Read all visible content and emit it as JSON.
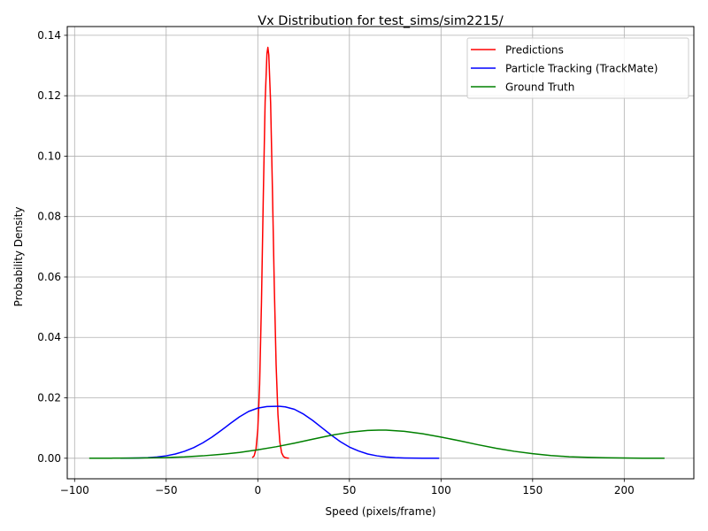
{
  "chart_data": {
    "type": "line",
    "title": "Vx Distribution for test_sims/sim2215/",
    "xlabel": "Speed (pixels/frame)",
    "ylabel": "Probability Density",
    "xlim": [
      -104,
      238
    ],
    "ylim": [
      -0.0068,
      0.1429
    ],
    "xticks": [
      -100,
      -50,
      0,
      50,
      100,
      150,
      200
    ],
    "xtick_labels": [
      "−100",
      "−50",
      "0",
      "50",
      "100",
      "150",
      "200"
    ],
    "yticks": [
      0.0,
      0.02,
      0.04,
      0.06,
      0.08,
      0.1,
      0.12,
      0.14
    ],
    "ytick_labels": [
      "0.00",
      "0.02",
      "0.04",
      "0.06",
      "0.08",
      "0.10",
      "0.12",
      "0.14"
    ],
    "grid": true,
    "legend_position": "top-right",
    "series": [
      {
        "name": "Predictions",
        "color": "#ff0000",
        "x": [
          -3.0,
          -2.0,
          -1.0,
          0.0,
          1.0,
          2.0,
          3.0,
          4.0,
          5.0,
          5.5,
          6.0,
          7.0,
          8.0,
          9.0,
          10.0,
          11.0,
          12.0,
          13.0,
          14.0,
          15.0,
          16.0,
          17.0
        ],
        "y": [
          0.0002,
          0.0008,
          0.003,
          0.0095,
          0.0245,
          0.0515,
          0.0865,
          0.118,
          0.134,
          0.136,
          0.1335,
          0.1175,
          0.0885,
          0.057,
          0.031,
          0.0145,
          0.0055,
          0.0018,
          0.0006,
          0.0002,
          0.0001,
          0.0
        ]
      },
      {
        "name": "Particle Tracking (TrackMate)",
        "color": "#0000ff",
        "x": [
          -75,
          -70,
          -65,
          -60,
          -55,
          -50,
          -45,
          -40,
          -35,
          -30,
          -25,
          -20,
          -15,
          -10,
          -5,
          0,
          5,
          10,
          12,
          15,
          20,
          25,
          30,
          35,
          40,
          45,
          50,
          55,
          60,
          65,
          70,
          75,
          80,
          85,
          90,
          95,
          99
        ],
        "y": [
          2e-05,
          5e-05,
          0.0001,
          0.0002,
          0.0004,
          0.0008,
          0.0014,
          0.0023,
          0.0035,
          0.0051,
          0.007,
          0.0092,
          0.0115,
          0.0137,
          0.0155,
          0.0166,
          0.0171,
          0.0172,
          0.0172,
          0.017,
          0.0162,
          0.0146,
          0.0125,
          0.0101,
          0.0077,
          0.0055,
          0.0037,
          0.0024,
          0.0014,
          0.0008,
          0.0004,
          0.0002,
          0.0001,
          5e-05,
          2e-05,
          1e-05,
          0.0
        ]
      },
      {
        "name": "Ground Truth",
        "color": "#008000",
        "x": [
          -92,
          -80,
          -70,
          -60,
          -50,
          -40,
          -30,
          -20,
          -10,
          0,
          10,
          20,
          30,
          40,
          50,
          60,
          66,
          70,
          80,
          90,
          100,
          110,
          120,
          130,
          140,
          150,
          160,
          170,
          180,
          190,
          200,
          210,
          222
        ],
        "y": [
          1e-05,
          3e-05,
          6e-05,
          0.00012,
          0.00024,
          0.00045,
          0.0008,
          0.0013,
          0.0019,
          0.0028,
          0.0038,
          0.005,
          0.0063,
          0.0076,
          0.0086,
          0.0092,
          0.0093,
          0.0093,
          0.0089,
          0.0081,
          0.007,
          0.0058,
          0.0045,
          0.0033,
          0.0023,
          0.0015,
          0.0009,
          0.0005,
          0.0003,
          0.00015,
          7e-05,
          3e-05,
          1e-05
        ]
      }
    ]
  }
}
